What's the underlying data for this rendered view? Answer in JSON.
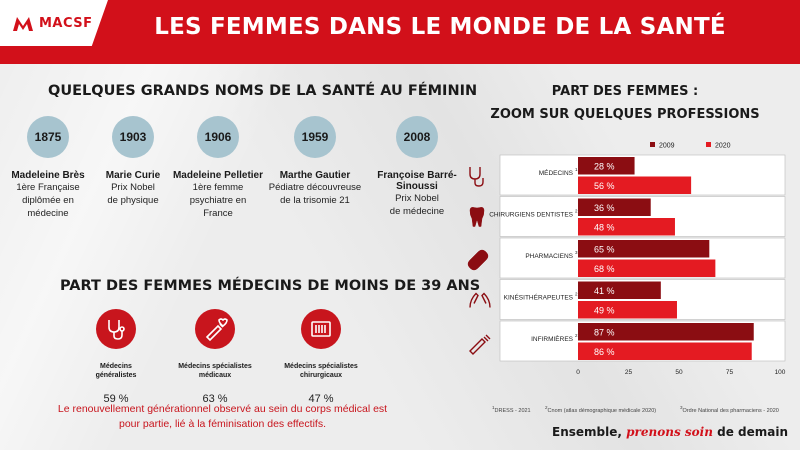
{
  "header": {
    "logo_text": "MACSF",
    "title": "LES FEMMES DANS LE MONDE DE LA SANTÉ"
  },
  "left": {
    "section1_title": "QUELQUES GRANDS NOMS DE LA SANTÉ AU FÉMININ",
    "timeline": [
      {
        "year": "1875",
        "name": "Madeleine Brès",
        "lines": [
          "1ère Française",
          "diplômée en",
          "médecine"
        ]
      },
      {
        "year": "1903",
        "name": "Marie Curie",
        "lines": [
          "Prix Nobel",
          "de physique"
        ]
      },
      {
        "year": "1906",
        "name": "Madeleine Pelletier",
        "lines": [
          "1ère femme",
          "psychiatre en",
          "France"
        ]
      },
      {
        "year": "1959",
        "name": "Marthe Gautier",
        "lines": [
          "Pédiatre découvreuse",
          "de la trisomie 21"
        ]
      },
      {
        "year": "2008",
        "name": "Françoise Barré-Sinoussi",
        "lines": [
          "Prix Nobel",
          "de médecine"
        ]
      }
    ],
    "section2_title": "PART DES FEMMES MÉDECINS DE MOINS DE 39 ANS",
    "stats": [
      {
        "label1": "Médecins",
        "label2": "généralistes",
        "value": "59 %",
        "icon": "stethoscope-icon"
      },
      {
        "label1": "Médecins spécialistes",
        "label2": "médicaux",
        "value": "63 %",
        "icon": "syringe-heart-icon"
      },
      {
        "label1": "Médecins spécialistes",
        "label2": "chirurgicaux",
        "value": "47 %",
        "icon": "surgical-tools-icon"
      }
    ],
    "conclusion_line1": "Le renouvellement générationnel observé au sein du corps médical est",
    "conclusion_line2": "pour partie, lié à la féminisation des effectifs."
  },
  "right": {
    "title_line1": "PART DES FEMMES :",
    "title_line2": "ZOOM SUR QUELQUES PROFESSIONS"
  },
  "chart_data": {
    "type": "bar",
    "orientation": "horizontal",
    "categories": [
      "MÉDECINS",
      "CHIRURGIENS DENTISTES",
      "PHARMACIENS",
      "KINÉSITHÉRAPEUTES",
      "INFIRMIÈRES"
    ],
    "category_notes": [
      "1",
      "2",
      "3",
      "2",
      "2"
    ],
    "category_icons": [
      "stethoscope-icon",
      "tooth-icon",
      "pill-capsule-icon",
      "hands-icon",
      "syringe-icon"
    ],
    "series": [
      {
        "name": "2009",
        "values": [
          28,
          36,
          65,
          41,
          87
        ],
        "labels": [
          "28 %",
          "36 %",
          "65 %",
          "41 %",
          "87 %"
        ],
        "color": "#8b0d12"
      },
      {
        "name": "2020",
        "values": [
          56,
          48,
          68,
          49,
          86
        ],
        "labels": [
          "56 %",
          "48 %",
          "68 %",
          "49 %",
          "86 %"
        ],
        "color": "#e41b22"
      }
    ],
    "xlim": [
      0,
      100
    ],
    "xticks": [
      "0",
      "25",
      "50",
      "75",
      "100"
    ],
    "legend_position": "top",
    "grid": false
  },
  "footnotes": [
    {
      "num": "1",
      "text": "DRESS - 2021"
    },
    {
      "num": "2",
      "text": "Cnom (atlas démographique médicale 2020)"
    },
    {
      "num": "3",
      "text": "Ordre National des pharmaciens - 2020"
    }
  ],
  "footer": {
    "part1": "Ensemble, ",
    "accent": "prenons soin",
    "part2": " de demain"
  },
  "colors": {
    "brand_red": "#d2101a",
    "dark_red": "#8b0d12",
    "bright_red": "#e41b22",
    "year_circle": "#a7c4cf"
  }
}
